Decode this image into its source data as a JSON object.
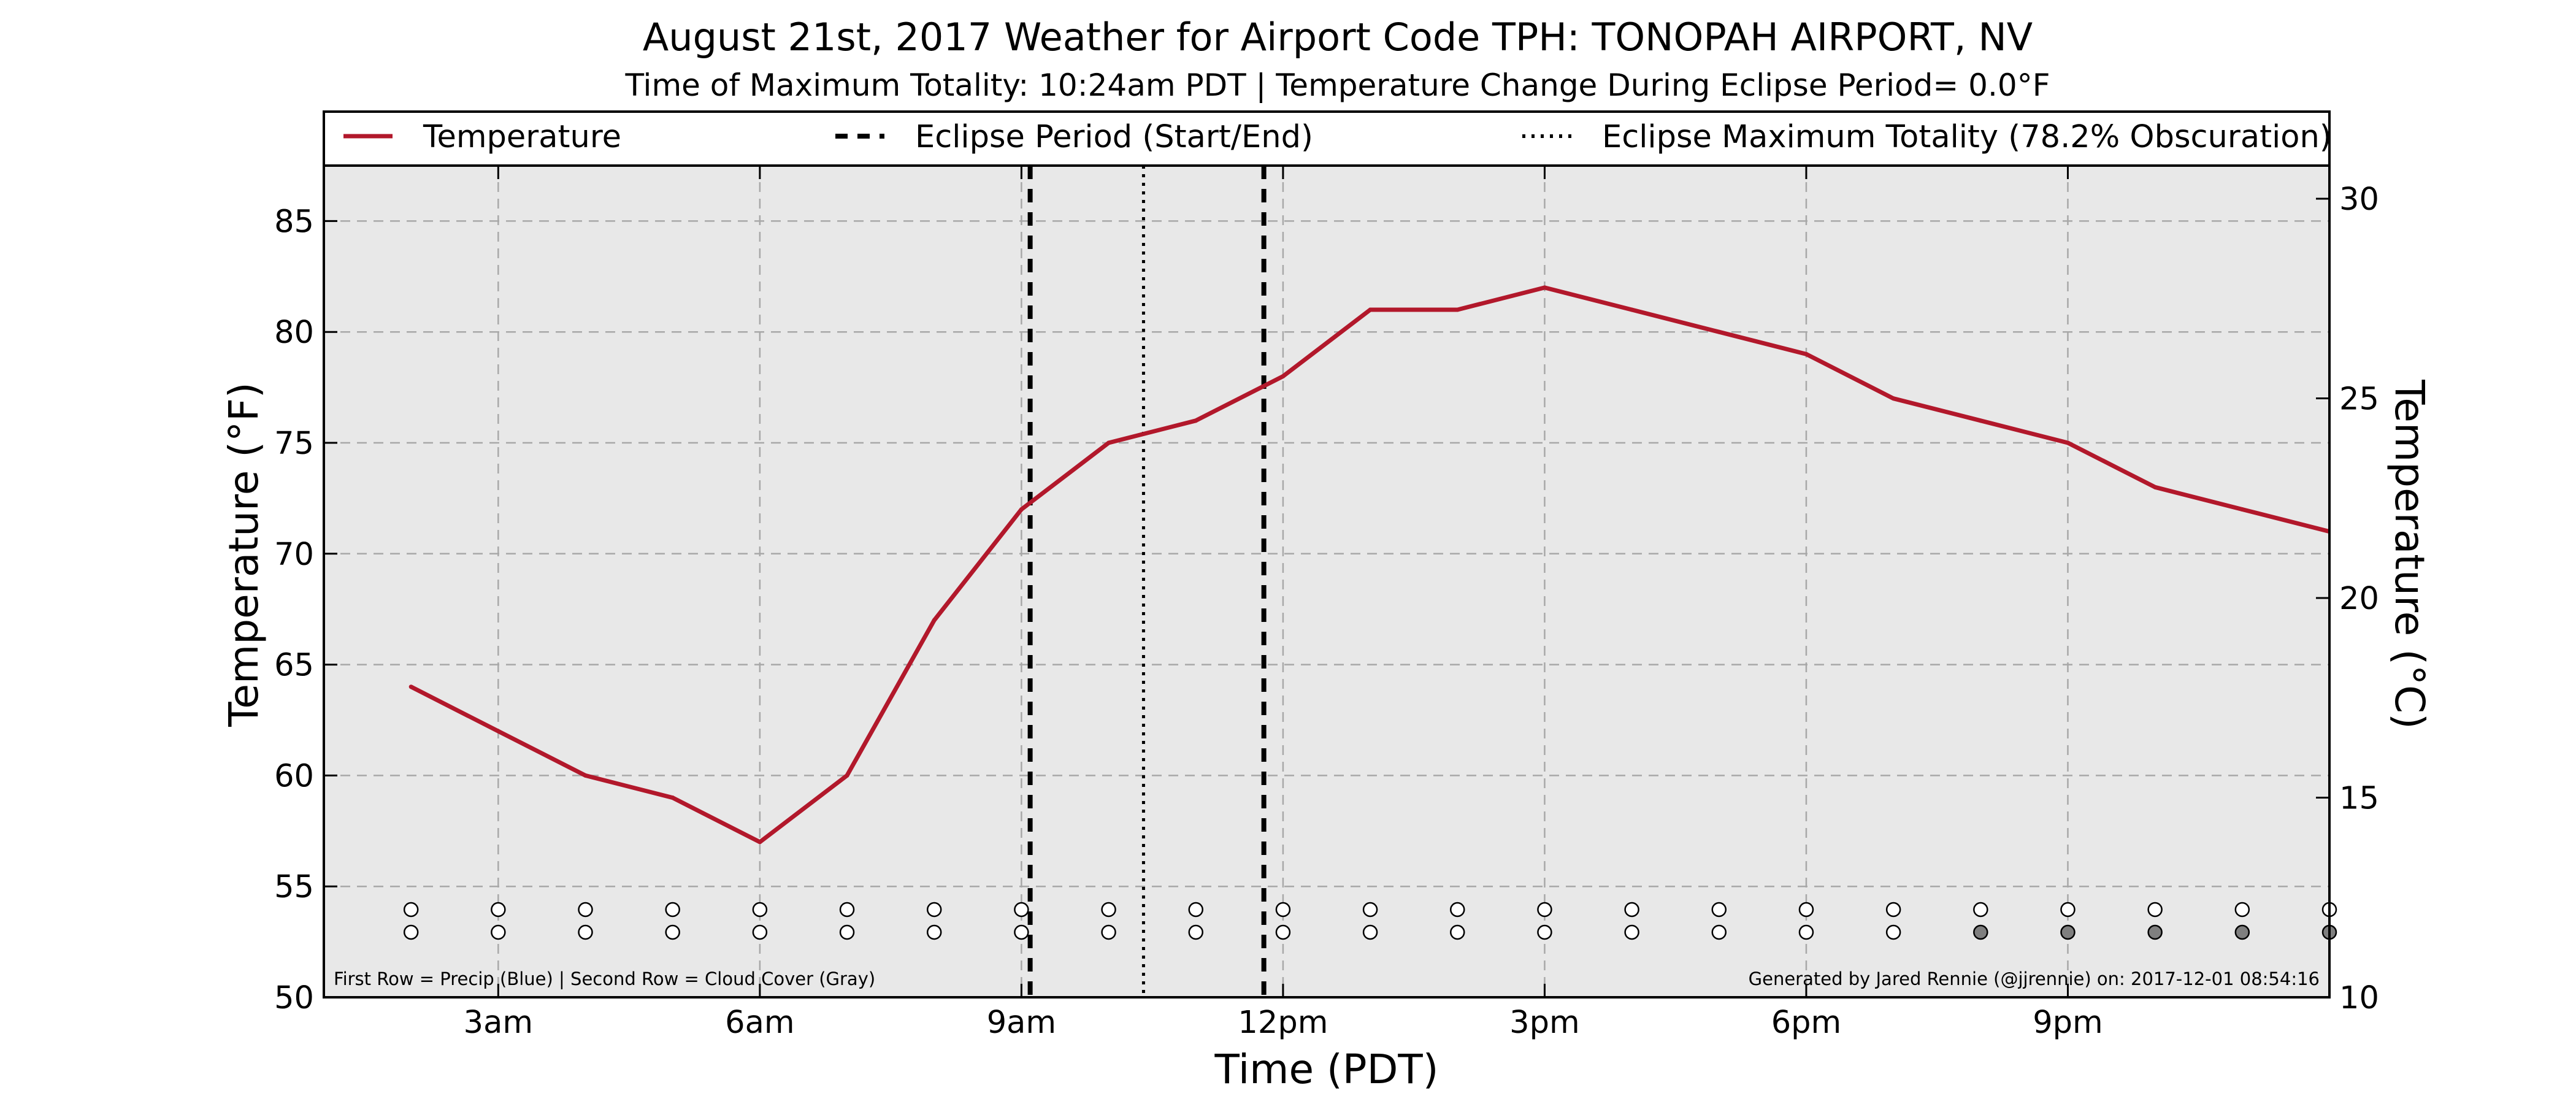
{
  "title": "August 21st, 2017 Weather for Airport Code TPH: TONOPAH AIRPORT, NV",
  "subtitle": "Time of Maximum Totality: 10:24am PDT | Temperature Change During Eclipse Period= 0.0°F",
  "legend": {
    "temperature": "Temperature",
    "eclipse_period": "Eclipse Period (Start/End)",
    "eclipse_max": "Eclipse Maximum Totality (78.2% Obscuration)"
  },
  "notes": {
    "rows": "First Row = Precip (Blue) | Second Row = Cloud Cover (Gray)",
    "credit": "Generated by Jared Rennie (@jjrennie) on: 2017-12-01 08:54:16"
  },
  "colors": {
    "temperature_line": "#b2182b",
    "plot_background": "#e8e8e8",
    "cloud_cover_filled": "#7f7f7f",
    "marker_empty": "#ffffff"
  },
  "chart_data": {
    "type": "line",
    "xlabel": "Time (PDT)",
    "ylabel": "Temperature (°F)",
    "ylabel_right": "Temperature (°C)",
    "xlim_hours": [
      1,
      24
    ],
    "ylim": [
      50,
      87.5
    ],
    "ylim_right": [
      10,
      30.83
    ],
    "grid": true,
    "legend_position": "top",
    "x_ticks": [
      {
        "hour": 3,
        "label": "3am"
      },
      {
        "hour": 6,
        "label": "6am"
      },
      {
        "hour": 9,
        "label": "9am"
      },
      {
        "hour": 12,
        "label": "12pm"
      },
      {
        "hour": 15,
        "label": "3pm"
      },
      {
        "hour": 18,
        "label": "6pm"
      },
      {
        "hour": 21,
        "label": "9pm"
      }
    ],
    "y_ticks": [
      50,
      55,
      60,
      65,
      70,
      75,
      80,
      85
    ],
    "y_ticks_right": [
      10,
      15,
      20,
      25,
      30
    ],
    "series": [
      {
        "name": "Temperature",
        "hours": [
          2,
          3,
          4,
          5,
          6,
          7,
          8,
          9,
          10,
          11,
          12,
          13,
          14,
          15,
          16,
          17,
          18,
          19,
          20,
          21,
          22,
          23,
          24
        ],
        "values": [
          64,
          62,
          60,
          59,
          57,
          60,
          67,
          72,
          75,
          76,
          78,
          81,
          81,
          82,
          81,
          80,
          79,
          77,
          76,
          75,
          73,
          72,
          71
        ]
      }
    ],
    "eclipse_start_hour": 9.1,
    "eclipse_end_hour": 11.78,
    "eclipse_max_hour": 10.4,
    "precip_row": {
      "hours": [
        2,
        3,
        4,
        5,
        6,
        7,
        8,
        9,
        10,
        11,
        12,
        13,
        14,
        15,
        16,
        17,
        18,
        19,
        20,
        21,
        22,
        23,
        24
      ],
      "present": [
        false,
        false,
        false,
        false,
        false,
        false,
        false,
        false,
        false,
        false,
        false,
        false,
        false,
        false,
        false,
        false,
        false,
        false,
        false,
        false,
        false,
        false,
        false
      ]
    },
    "cloud_row": {
      "hours": [
        2,
        3,
        4,
        5,
        6,
        7,
        8,
        9,
        10,
        11,
        12,
        13,
        14,
        15,
        16,
        17,
        18,
        19,
        20,
        21,
        22,
        23,
        24
      ],
      "covered": [
        false,
        false,
        false,
        false,
        false,
        false,
        false,
        false,
        false,
        false,
        false,
        false,
        false,
        false,
        false,
        false,
        false,
        false,
        true,
        true,
        true,
        true,
        true
      ]
    }
  }
}
